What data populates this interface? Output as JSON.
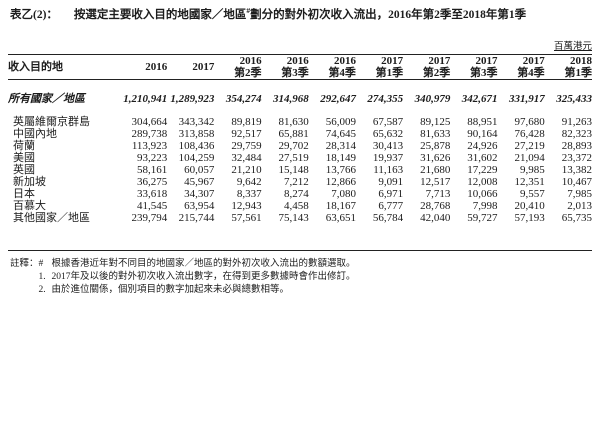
{
  "page": {
    "title_prefix": "表乙(2)：",
    "title_main": "按選定主要收入目的地國家／地區",
    "title_footnote_marker": "#",
    "title_suffix": "劃分的對外初次收入流出，2016年第2季至2018年第1季",
    "unit_label": "百萬港元"
  },
  "table": {
    "destination_header": "收入目的地",
    "columns": [
      {
        "line1": "2016",
        "line2": ""
      },
      {
        "line1": "2017",
        "line2": ""
      },
      {
        "line1": "2016",
        "line2": "第2季"
      },
      {
        "line1": "2016",
        "line2": "第3季"
      },
      {
        "line1": "2016",
        "line2": "第4季"
      },
      {
        "line1": "2017",
        "line2": "第1季"
      },
      {
        "line1": "2017",
        "line2": "第2季"
      },
      {
        "line1": "2017",
        "line2": "第3季"
      },
      {
        "line1": "2017",
        "line2": "第4季"
      },
      {
        "line1": "2018",
        "line2": "第1季"
      }
    ],
    "total_row": {
      "label": "所有國家／地區",
      "values": [
        "1,210,941",
        "1,289,923",
        "354,274",
        "314,968",
        "292,647",
        "274,355",
        "340,979",
        "342,671",
        "331,917",
        "325,433"
      ]
    },
    "rows": [
      {
        "label": "英屬維爾京群島",
        "values": [
          "304,664",
          "343,342",
          "89,819",
          "81,630",
          "56,009",
          "67,587",
          "89,125",
          "88,951",
          "97,680",
          "91,263"
        ]
      },
      {
        "label": "中國內地",
        "values": [
          "289,738",
          "313,858",
          "92,517",
          "65,881",
          "74,645",
          "65,632",
          "81,633",
          "90,164",
          "76,428",
          "82,323"
        ]
      },
      {
        "label": "荷蘭",
        "values": [
          "113,923",
          "108,436",
          "29,759",
          "29,702",
          "28,314",
          "30,413",
          "25,878",
          "24,926",
          "27,219",
          "28,893"
        ]
      },
      {
        "label": "美國",
        "values": [
          "93,223",
          "104,259",
          "32,484",
          "27,519",
          "18,149",
          "19,937",
          "31,626",
          "31,602",
          "21,094",
          "23,372"
        ]
      },
      {
        "label": "英國",
        "values": [
          "58,161",
          "60,057",
          "21,210",
          "15,148",
          "13,766",
          "11,163",
          "21,680",
          "17,229",
          "9,985",
          "13,382"
        ]
      },
      {
        "label": "新加坡",
        "values": [
          "36,275",
          "45,967",
          "9,642",
          "7,212",
          "12,866",
          "9,091",
          "12,517",
          "12,008",
          "12,351",
          "10,467"
        ]
      },
      {
        "label": "日本",
        "values": [
          "33,618",
          "34,307",
          "8,337",
          "8,274",
          "7,080",
          "6,971",
          "7,713",
          "10,066",
          "9,557",
          "7,985"
        ]
      },
      {
        "label": "百慕大",
        "values": [
          "41,545",
          "63,954",
          "12,943",
          "4,458",
          "18,167",
          "6,777",
          "28,768",
          "7,998",
          "20,410",
          "2,013"
        ]
      },
      {
        "label": "其他國家／地區",
        "values": [
          "239,794",
          "215,744",
          "57,561",
          "75,143",
          "63,651",
          "56,784",
          "42,040",
          "59,727",
          "57,193",
          "65,735"
        ]
      }
    ]
  },
  "footnotes": {
    "label": "註釋：",
    "items": [
      {
        "marker": "#",
        "text": "根據香港近年對不同目的地國家／地區的對外初次收入流出的數額選取。"
      },
      {
        "marker": "1.",
        "text": "2017年及以後的對外初次收入流出數字，在得到更多數據時會作出修訂。"
      },
      {
        "marker": "2.",
        "text": "由於進位關係，個別項目的數字加起來未必與總數相等。"
      }
    ]
  }
}
